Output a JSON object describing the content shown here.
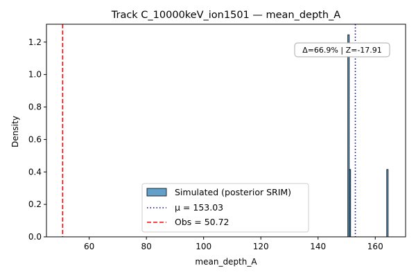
{
  "chart_data": {
    "type": "bar",
    "title": "Track C_10000keV_ion1501 — mean_depth_A",
    "xlabel": "mean_depth_A",
    "ylabel": "Density",
    "xlim": [
      45.06,
      170.6
    ],
    "ylim": [
      0,
      1.31
    ],
    "xticks": [
      "60",
      "80",
      "100",
      "120",
      "140",
      "160"
    ],
    "yticks": [
      "0.0",
      "0.2",
      "0.4",
      "0.6",
      "0.8",
      "1.0",
      "1.2"
    ],
    "grid": false,
    "legend_position": "bottom-center",
    "series": [
      {
        "name": "Simulated (posterior SRIM)",
        "kind": "histogram",
        "color": "#1f77b4",
        "bins": [
          {
            "x0": 150.4,
            "x1": 150.9,
            "density": 1.245
          },
          {
            "x0": 150.9,
            "x1": 151.4,
            "density": 0.415
          },
          {
            "x0": 164.0,
            "x1": 164.5,
            "density": 0.415
          }
        ]
      },
      {
        "name": "μ = 153.03",
        "kind": "vline",
        "value": 153.03,
        "color": "#00008b",
        "style": "dotted"
      },
      {
        "name": "Obs = 50.72",
        "kind": "vline",
        "value": 50.72,
        "color": "#ff0000",
        "style": "dashed"
      }
    ],
    "annotation": {
      "text": "Δ=66.9% | Z=-17.91",
      "position": "top-right"
    }
  }
}
